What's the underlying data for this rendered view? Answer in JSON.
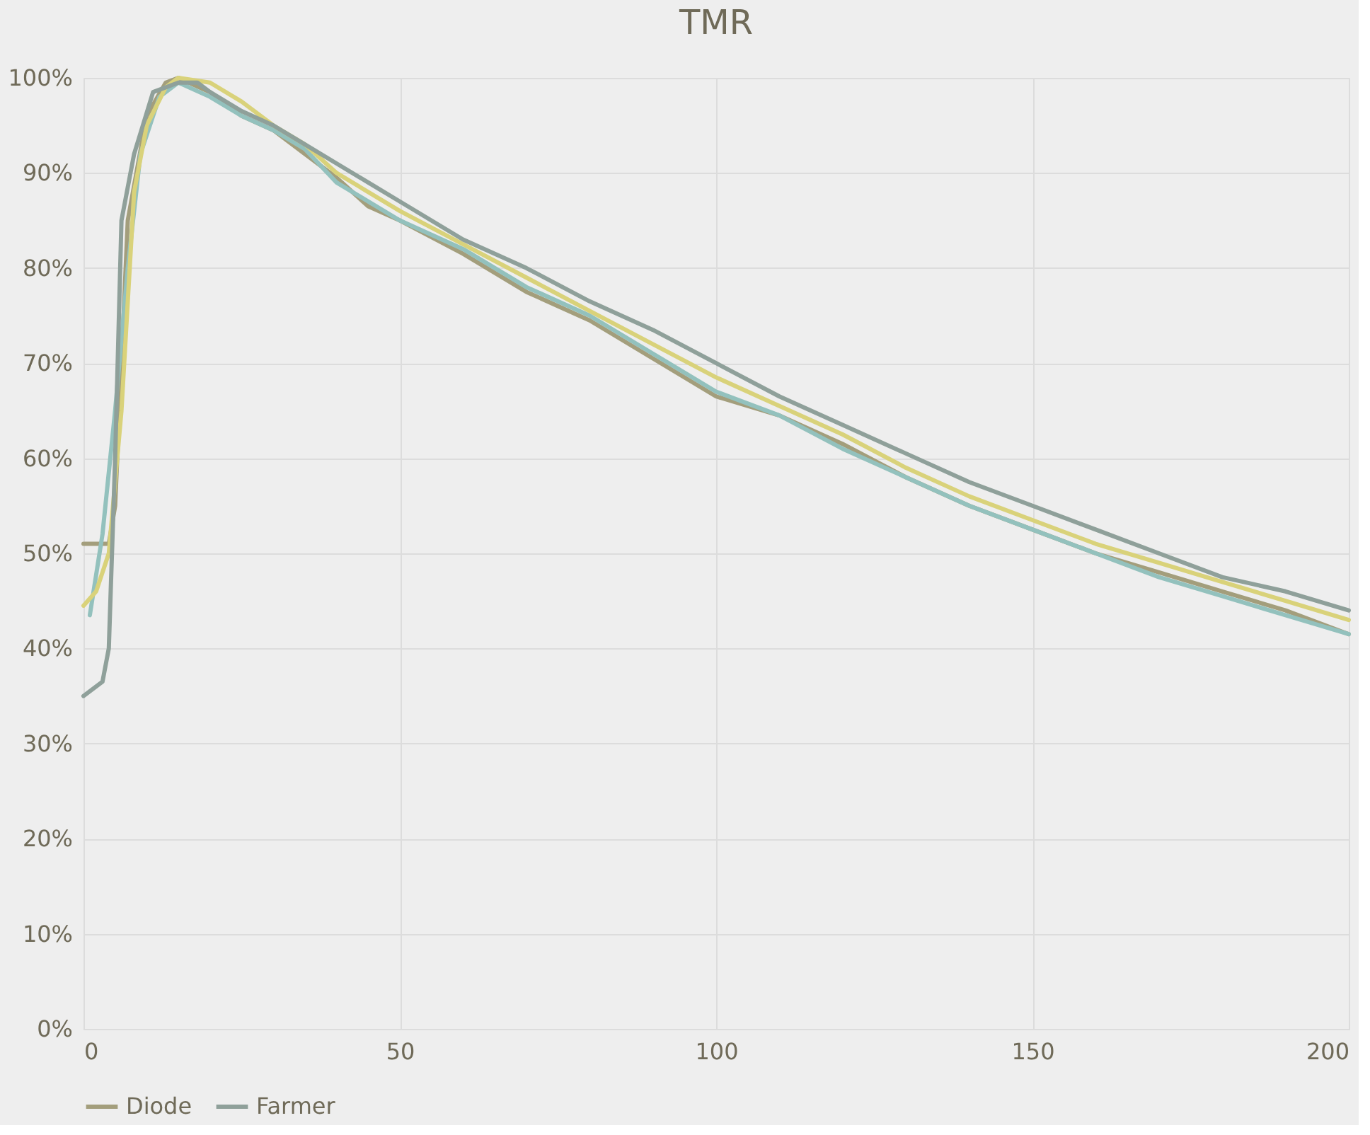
{
  "chart_data": {
    "type": "line",
    "title": "TMR",
    "xlim": [
      0,
      200
    ],
    "xticks": [
      0,
      50,
      100,
      150,
      200
    ],
    "ylim": [
      0,
      100
    ],
    "yticks": [
      {
        "value": 0,
        "label": "0%"
      },
      {
        "value": 10,
        "label": "10%"
      },
      {
        "value": 20,
        "label": "20%"
      },
      {
        "value": 30,
        "label": "30%"
      },
      {
        "value": 40,
        "label": "40%"
      },
      {
        "value": 50,
        "label": "50%"
      },
      {
        "value": 60,
        "label": "60%"
      },
      {
        "value": 70,
        "label": "70%"
      },
      {
        "value": 80,
        "label": "80%"
      },
      {
        "value": 90,
        "label": "90%"
      },
      {
        "value": 100,
        "label": "100%"
      }
    ],
    "grid": true,
    "legend": "bottom",
    "marker": "none",
    "line_style": "solid",
    "series": [
      {
        "name": "Diode",
        "color": "#a39e7c",
        "x": [
          0,
          4,
          5,
          7,
          10,
          13,
          15,
          20,
          25,
          30,
          35,
          40,
          45,
          50,
          60,
          70,
          80,
          90,
          100,
          110,
          120,
          130,
          140,
          150,
          160,
          170,
          180,
          190,
          200
        ],
        "values": [
          51,
          51,
          55,
          85,
          96,
          99.5,
          100,
          98.5,
          96,
          94.5,
          92,
          89.5,
          86.5,
          85,
          81.5,
          77.5,
          74.5,
          70.5,
          66.5,
          64.5,
          61.5,
          58,
          55,
          52.5,
          50,
          48,
          46,
          44,
          41.5
        ]
      },
      {
        "color": "#93c1bd",
        "x": [
          1,
          3,
          5,
          7,
          9,
          12,
          15,
          20,
          25,
          30,
          35,
          40,
          50,
          60,
          70,
          80,
          90,
          100,
          110,
          120,
          130,
          140,
          150,
          160,
          170,
          180,
          190,
          200
        ],
        "values": [
          43.5,
          52,
          65,
          80,
          92,
          98,
          99.5,
          98,
          96,
          94.5,
          92.5,
          89,
          85,
          82,
          78,
          75,
          71,
          67,
          64.5,
          61,
          58,
          55,
          52.5,
          50,
          47.5,
          45.5,
          43.5,
          41.5
        ]
      },
      {
        "color": "#d9d27a",
        "x": [
          0,
          2,
          4,
          6,
          8,
          10,
          13,
          15,
          20,
          25,
          30,
          35,
          40,
          50,
          60,
          70,
          80,
          90,
          100,
          110,
          120,
          130,
          140,
          150,
          160,
          170,
          180,
          190,
          200
        ],
        "values": [
          44.5,
          46,
          50,
          65,
          88,
          95,
          99,
          100,
          99.5,
          97.5,
          95,
          93,
          90,
          86,
          82.5,
          79,
          75.5,
          72,
          68.5,
          65.5,
          62.5,
          59,
          56,
          53.5,
          51,
          49,
          47,
          45,
          43
        ]
      },
      {
        "name": "Farmer",
        "color": "#8fa09a",
        "x": [
          0,
          3,
          4,
          5,
          6,
          8,
          11,
          15,
          18,
          20,
          25,
          30,
          35,
          40,
          45,
          50,
          60,
          70,
          80,
          90,
          100,
          110,
          120,
          130,
          140,
          150,
          160,
          170,
          180,
          190,
          200
        ],
        "values": [
          35,
          36.5,
          40,
          60,
          85,
          92,
          98.5,
          99.5,
          99.5,
          98.5,
          96.5,
          95,
          93,
          91,
          89,
          87,
          83,
          80,
          76.5,
          73.5,
          70,
          66.5,
          63.5,
          60.5,
          57.5,
          55,
          52.5,
          50,
          47.5,
          46,
          44
        ]
      }
    ]
  }
}
